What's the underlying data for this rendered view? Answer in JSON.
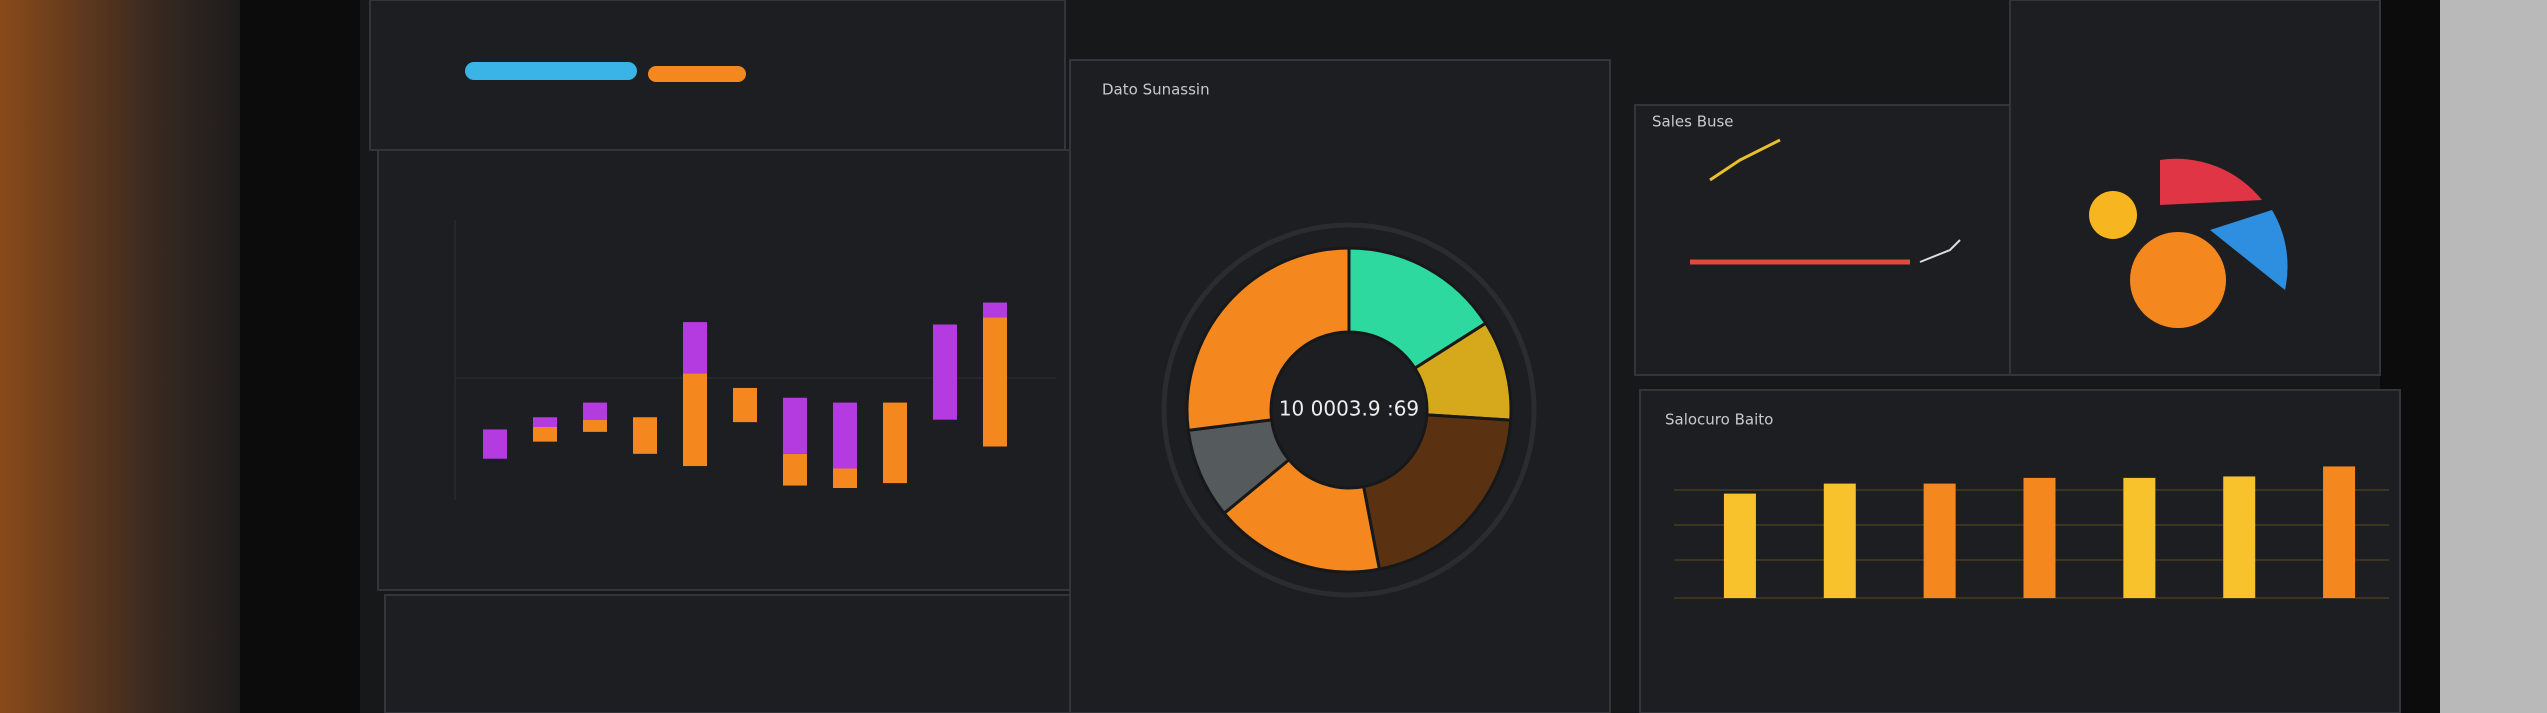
{
  "header": {
    "panel_title": "Dato Sunassin",
    "sales_title": "Sales Buse",
    "bars_title": "Salocuro Baito"
  },
  "chart_data": [
    {
      "type": "floating-bar",
      "categories": [
        null,
        null,
        null,
        null,
        null,
        null,
        null,
        null,
        null,
        null,
        null
      ],
      "series": [
        {
          "color": "#f5871f",
          "values": [
            null,
            [
              19,
              25
            ],
            [
              23,
              28
            ],
            [
              14,
              29
            ],
            [
              9,
              47
            ],
            [
              27,
              41
            ],
            [
              1,
              14
            ],
            [
              0,
              8
            ],
            [
              2,
              35
            ],
            null,
            [
              17,
              70
            ]
          ]
        },
        {
          "color": "#b43be0",
          "values": [
            [
              12,
              24
            ],
            [
              25,
              29
            ],
            [
              28,
              35
            ],
            null,
            [
              47,
              68
            ],
            null,
            [
              14,
              37
            ],
            [
              8,
              35
            ],
            null,
            [
              28,
              67
            ],
            [
              70,
              76
            ]
          ]
        }
      ],
      "ylim": [
        0,
        100
      ]
    },
    {
      "type": "donut",
      "values": [
        16,
        10,
        21,
        17,
        9,
        27
      ],
      "colors": [
        "#2ed9a0",
        "#d6a81c",
        "#5a3212",
        "#f5871f",
        "#555a5c",
        "#f5871f"
      ],
      "center_label": "10 0003.9 :69"
    },
    {
      "type": "bar",
      "values": [
        73,
        80,
        80,
        84,
        84,
        85,
        92
      ],
      "colors": [
        "#f7c22b",
        "#f7c22b",
        "#f5871f",
        "#f5871f",
        "#f7c22b",
        "#f7c22b",
        "#f5871f"
      ],
      "ylim": [
        0,
        100
      ]
    }
  ]
}
